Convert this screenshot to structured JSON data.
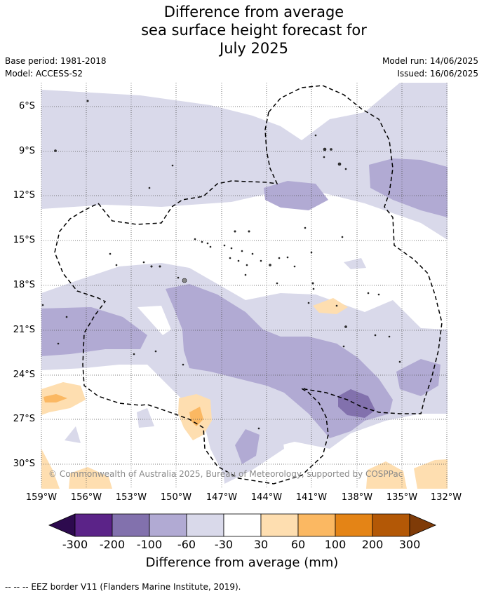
{
  "header": {
    "title_lines": [
      "Difference from average",
      "sea surface height forecast for",
      "July 2025"
    ],
    "base_period": "Base period: 1981-2018",
    "model": "Model: ACCESS-S2",
    "model_run": "Model run: 14/06/2025",
    "issued": "Issued: 16/06/2025"
  },
  "map": {
    "lat_labels": [
      "6°S",
      "9°S",
      "12°S",
      "15°S",
      "18°S",
      "21°S",
      "24°S",
      "27°S",
      "30°S"
    ],
    "lon_labels": [
      "159°W",
      "156°W",
      "153°W",
      "150°W",
      "147°W",
      "144°W",
      "141°W",
      "138°W",
      "135°W",
      "132°W"
    ],
    "copyright": "© Commonwealth of Australia 2025, Bureau of Meteorology, supported by COSPPac"
  },
  "colorbar": {
    "ticks": [
      "-300",
      "-200",
      "-100",
      "-60",
      "-30",
      "30",
      "60",
      "100",
      "200",
      "300"
    ],
    "colors": [
      "#2d0a4e",
      "#5b2388",
      "#8271ad",
      "#b1aad3",
      "#d9d9ea",
      "#ffffff",
      "#fedeb0",
      "#fbb862",
      "#e48416",
      "#b35806",
      "#7f3b08"
    ],
    "title": "Difference from average (mm)"
  },
  "legend": {
    "text": "--  --  -- EEZ border V11 (Flanders Marine Institute, 2019)."
  }
}
